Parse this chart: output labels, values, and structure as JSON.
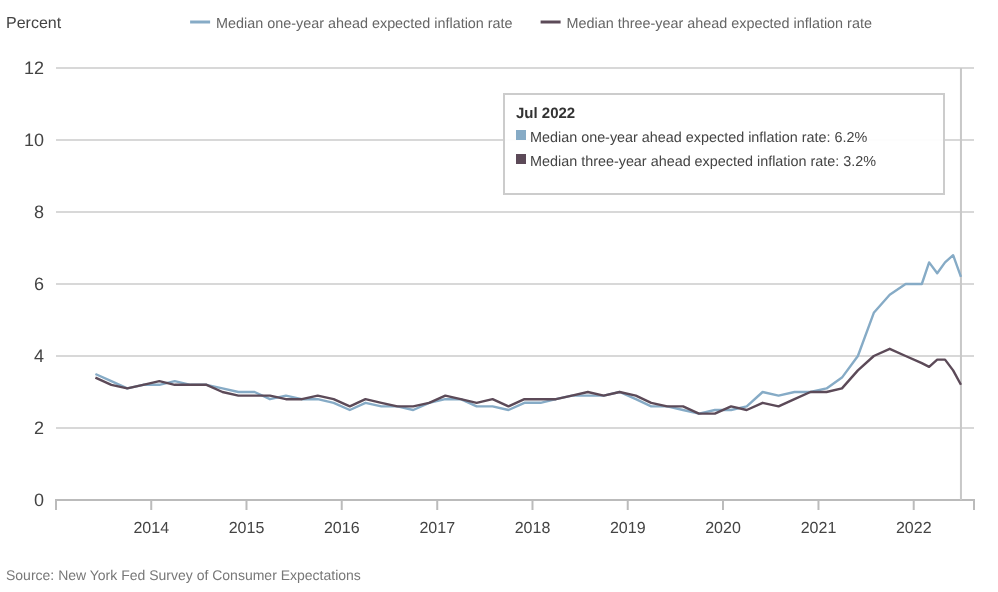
{
  "chart_data": {
    "type": "line",
    "ylabel": "Percent",
    "x": [
      "2013-06",
      "2013-08",
      "2013-10",
      "2013-12",
      "2014-02",
      "2014-04",
      "2014-06",
      "2014-08",
      "2014-10",
      "2014-12",
      "2015-02",
      "2015-04",
      "2015-06",
      "2015-08",
      "2015-10",
      "2015-12",
      "2016-02",
      "2016-04",
      "2016-06",
      "2016-08",
      "2016-10",
      "2016-12",
      "2017-02",
      "2017-04",
      "2017-06",
      "2017-08",
      "2017-10",
      "2017-12",
      "2018-02",
      "2018-04",
      "2018-06",
      "2018-08",
      "2018-10",
      "2018-12",
      "2019-02",
      "2019-04",
      "2019-06",
      "2019-08",
      "2019-10",
      "2019-12",
      "2020-02",
      "2020-04",
      "2020-06",
      "2020-08",
      "2020-10",
      "2020-12",
      "2021-02",
      "2021-04",
      "2021-06",
      "2021-08",
      "2021-10",
      "2021-12",
      "2022-02",
      "2022-03",
      "2022-04",
      "2022-05",
      "2022-06",
      "2022-07"
    ],
    "series": [
      {
        "name": "Median one-year ahead expected inflation rate",
        "color": "#86abc6",
        "values": [
          3.5,
          3.3,
          3.1,
          3.2,
          3.2,
          3.3,
          3.2,
          3.2,
          3.1,
          3.0,
          3.0,
          2.8,
          2.9,
          2.8,
          2.8,
          2.7,
          2.5,
          2.7,
          2.6,
          2.6,
          2.5,
          2.7,
          2.8,
          2.8,
          2.6,
          2.6,
          2.5,
          2.7,
          2.7,
          2.8,
          2.9,
          2.9,
          2.9,
          3.0,
          2.8,
          2.6,
          2.6,
          2.5,
          2.4,
          2.5,
          2.5,
          2.6,
          3.0,
          2.9,
          3.0,
          3.0,
          3.1,
          3.4,
          4.0,
          5.2,
          5.7,
          6.0,
          6.0,
          6.6,
          6.3,
          6.6,
          6.8,
          6.2
        ]
      },
      {
        "name": "Median three-year ahead expected inflation rate",
        "color": "#5c4a58",
        "values": [
          3.4,
          3.2,
          3.1,
          3.2,
          3.3,
          3.2,
          3.2,
          3.2,
          3.0,
          2.9,
          2.9,
          2.9,
          2.8,
          2.8,
          2.9,
          2.8,
          2.6,
          2.8,
          2.7,
          2.6,
          2.6,
          2.7,
          2.9,
          2.8,
          2.7,
          2.8,
          2.6,
          2.8,
          2.8,
          2.8,
          2.9,
          3.0,
          2.9,
          3.0,
          2.9,
          2.7,
          2.6,
          2.6,
          2.4,
          2.4,
          2.6,
          2.5,
          2.7,
          2.6,
          2.8,
          3.0,
          3.0,
          3.1,
          3.6,
          4.0,
          4.2,
          4.0,
          3.8,
          3.7,
          3.9,
          3.9,
          3.6,
          3.2
        ]
      }
    ],
    "xlim": [
      "2013-01-01",
      "2022-08-20"
    ],
    "xticks": [
      "2014",
      "2015",
      "2016",
      "2017",
      "2018",
      "2019",
      "2020",
      "2021",
      "2022"
    ],
    "ylim": [
      0,
      12
    ],
    "yticks": [
      0,
      2,
      4,
      6,
      8,
      10,
      12
    ],
    "grid": "y",
    "legend": "top",
    "marker": "none",
    "line_style": "solid",
    "ref_lines": [
      {
        "axis": "x",
        "value": "2022-07",
        "label": null,
        "color": "#c8c8c8"
      }
    ],
    "annotations": [
      "Jul 2022",
      "Median one-year ahead expected inflation rate: 6.2%",
      "Median three-year ahead expected inflation rate: 3.2%",
      "Source: New York Fed Survey of Consumer Expectations"
    ]
  }
}
